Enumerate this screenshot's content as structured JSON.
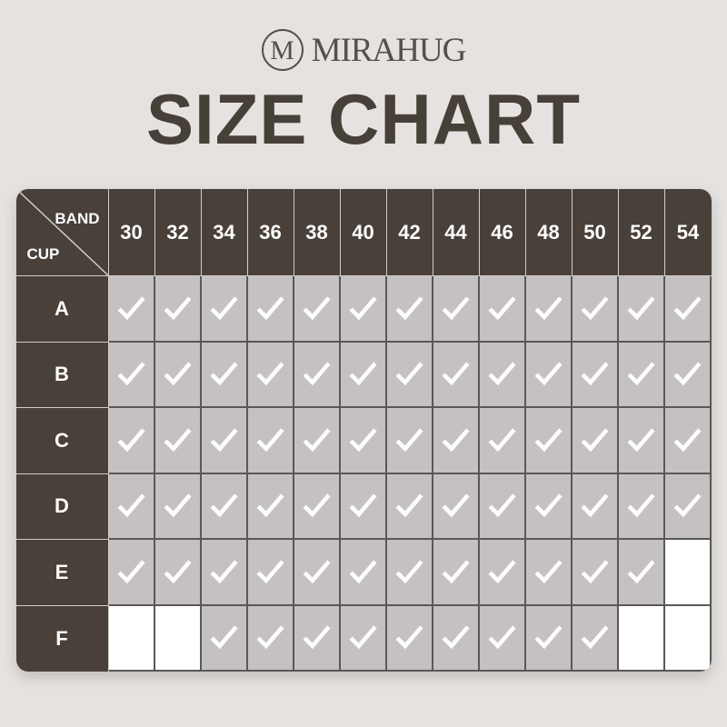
{
  "brand": {
    "monogram": "M",
    "name": "MIRAHUG"
  },
  "chart_data": {
    "type": "table",
    "title": "SIZE CHART",
    "col_axis_label": "BAND",
    "row_axis_label": "CUP",
    "columns": [
      "30",
      "32",
      "34",
      "36",
      "38",
      "40",
      "42",
      "44",
      "46",
      "48",
      "50",
      "52",
      "54"
    ],
    "rows": [
      {
        "cup": "A",
        "available": [
          1,
          1,
          1,
          1,
          1,
          1,
          1,
          1,
          1,
          1,
          1,
          1,
          1
        ]
      },
      {
        "cup": "B",
        "available": [
          1,
          1,
          1,
          1,
          1,
          1,
          1,
          1,
          1,
          1,
          1,
          1,
          1
        ]
      },
      {
        "cup": "C",
        "available": [
          1,
          1,
          1,
          1,
          1,
          1,
          1,
          1,
          1,
          1,
          1,
          1,
          1
        ]
      },
      {
        "cup": "D",
        "available": [
          1,
          1,
          1,
          1,
          1,
          1,
          1,
          1,
          1,
          1,
          1,
          1,
          1
        ]
      },
      {
        "cup": "E",
        "available": [
          1,
          1,
          1,
          1,
          1,
          1,
          1,
          1,
          1,
          1,
          1,
          1,
          0
        ]
      },
      {
        "cup": "F",
        "available": [
          0,
          0,
          1,
          1,
          1,
          1,
          1,
          1,
          1,
          1,
          1,
          0,
          0
        ]
      }
    ],
    "cell_marker": "check-icon",
    "legend_note": ""
  },
  "colors": {
    "background": "#e5e2e0",
    "header_bg": "#484039",
    "header_divider": "#d3cdc7",
    "cell_bg": "#c4c1c0",
    "cell_unavailable_bg": "#ffffff",
    "grid_line": "#5a5857",
    "check": "#fcfcfc",
    "title_text": "#474039",
    "logo_text": "#55504a"
  }
}
